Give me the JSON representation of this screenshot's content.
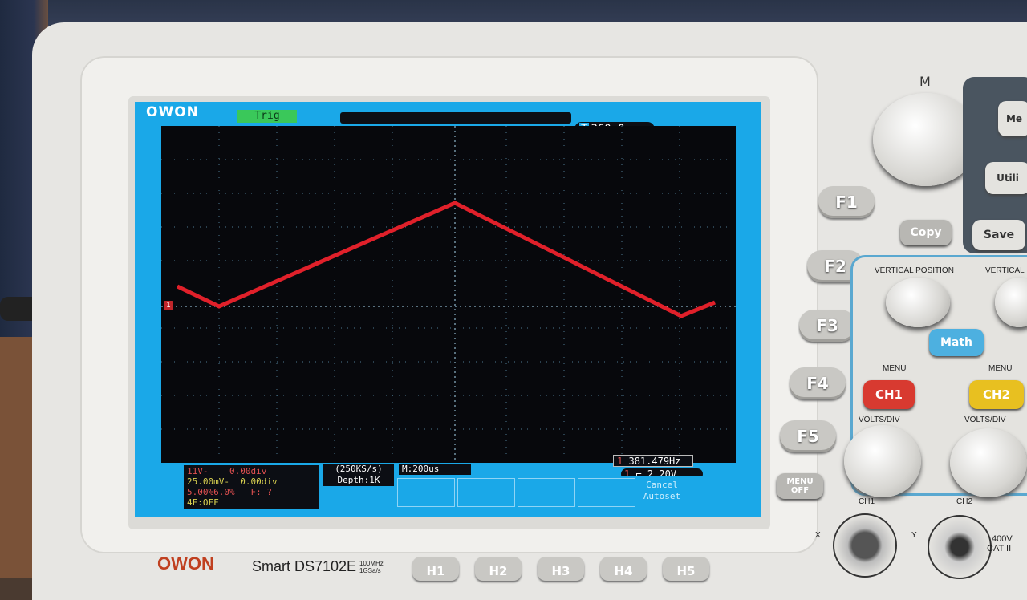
{
  "scope": {
    "logo": "OWON",
    "trigger_status": "Trig",
    "trigger_position": "360.0us",
    "frequency": "381.479Hz",
    "trigger_level": "2.20V",
    "ch1": {
      "scale": "1V-",
      "offset": "0.00div"
    },
    "ch2": {
      "scale": "5.00mV-",
      "offset": "0.00div"
    },
    "math_line": "5.00%6.0%",
    "f_line_a": "F:",
    "f_line_b": "?",
    "fft_line": "F:OFF",
    "sample_rate": "(250KS/s)",
    "depth": "Depth:1K",
    "timebase": "M:200us",
    "softkey_cancel": "Cancel",
    "softkey_autoset": "Autoset"
  },
  "panel": {
    "f_keys": [
      "F1",
      "F2",
      "F3",
      "F4",
      "F5"
    ],
    "h_keys": [
      "H1",
      "H2",
      "H3",
      "H4",
      "H5"
    ],
    "m_label": "M",
    "copy": "Copy",
    "save": "Save",
    "utility": "Utili",
    "menu_top": "Me",
    "math": "Math",
    "menu_off": "MENU\nOFF",
    "vertical_position": "VERTICAL  POSITION",
    "vertical": "VERTICAL",
    "menu": "MENU",
    "ch1_button": "CH1",
    "ch2_button": "CH2",
    "volts_div": "VOLTS/DIV",
    "ch1_input": "CH1",
    "ch2_input": "CH2",
    "x_label": "X",
    "y_label": "Y",
    "rating": "400V",
    "cat": "CAT II",
    "brand": "OWON",
    "model": "Smart DS7102E",
    "spec_bw": "100MHz",
    "spec_sr": "1GSa/s"
  },
  "colors": {
    "trace": "#e0202a",
    "screen": "#1aa8e8",
    "ch1": "#c0262a",
    "ch2": "#d8d050"
  }
}
